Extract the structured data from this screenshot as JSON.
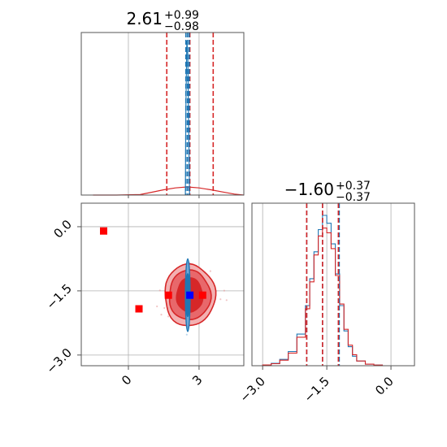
{
  "chart_data": [
    {
      "type": "histogram",
      "panel": "x-marginal",
      "title": {
        "value": "2.61",
        "upper": "+0.99",
        "lower": "−0.98"
      },
      "xlim": [
        -2.0,
        4.9
      ],
      "grid": true,
      "quantile_lines": {
        "red": [
          1.63,
          2.61,
          3.6
        ],
        "blue": [
          2.44,
          2.51,
          2.58
        ]
      },
      "series": [
        {
          "color": "#d62728",
          "bins": [
            [
              -1.5,
              0
            ],
            [
              -0.5,
              0
            ],
            [
              0.5,
              0.2
            ],
            [
              1.0,
              1.2
            ],
            [
              1.5,
              2.2
            ],
            [
              2.0,
              3.0
            ],
            [
              2.5,
              3.4
            ],
            [
              3.0,
              3.0
            ],
            [
              3.5,
              2.2
            ],
            [
              4.0,
              1.3
            ],
            [
              4.5,
              0.4
            ],
            [
              4.9,
              0
            ]
          ]
        },
        {
          "color": "#1f77b4",
          "bins": [
            [
              2.42,
              0
            ],
            [
              2.44,
              40
            ],
            [
              2.48,
              72
            ],
            [
              2.52,
              66
            ],
            [
              2.56,
              30
            ],
            [
              2.6,
              0
            ]
          ]
        }
      ]
    },
    {
      "type": "histogram",
      "panel": "y-marginal",
      "title": {
        "value": "−1.60",
        "upper": "+0.37",
        "lower": "−0.37"
      },
      "xlim": [
        -3.25,
        0.55
      ],
      "xticks": [
        "−3.0",
        "−1.5",
        "0.0"
      ],
      "xtick_values": [
        -3.0,
        -1.5,
        0.0
      ],
      "grid": true,
      "quantile_lines": {
        "red": [
          -1.97,
          -1.6,
          -1.23
        ],
        "blue": [
          -1.97,
          -1.6,
          -1.21
        ]
      },
      "series": [
        {
          "color": "#1f77b4",
          "bins": [
            [
              -3.2,
              0
            ],
            [
              -3.0,
              0.5
            ],
            [
              -2.8,
              1.5
            ],
            [
              -2.6,
              4
            ],
            [
              -2.4,
              9
            ],
            [
              -2.2,
              20
            ],
            [
              -2.0,
              38
            ],
            [
              -1.9,
              55
            ],
            [
              -1.8,
              72
            ],
            [
              -1.7,
              86
            ],
            [
              -1.6,
              95
            ],
            [
              -1.5,
              90
            ],
            [
              -1.4,
              77
            ],
            [
              -1.3,
              58
            ],
            [
              -1.2,
              38
            ],
            [
              -1.1,
              22
            ],
            [
              -1.0,
              12
            ],
            [
              -0.9,
              6
            ],
            [
              -0.8,
              3
            ],
            [
              -0.6,
              1
            ],
            [
              -0.4,
              0.4
            ],
            [
              -0.2,
              0
            ]
          ]
        },
        {
          "color": "#d62728",
          "bins": [
            [
              -3.2,
              0
            ],
            [
              -3.0,
              0.5
            ],
            [
              -2.8,
              1.3
            ],
            [
              -2.6,
              3.5
            ],
            [
              -2.4,
              8
            ],
            [
              -2.2,
              18
            ],
            [
              -2.0,
              36
            ],
            [
              -1.9,
              53
            ],
            [
              -1.8,
              70
            ],
            [
              -1.7,
              82
            ],
            [
              -1.6,
              87
            ],
            [
              -1.5,
              84
            ],
            [
              -1.4,
              74
            ],
            [
              -1.3,
              57
            ],
            [
              -1.2,
              39
            ],
            [
              -1.1,
              23
            ],
            [
              -1.0,
              13
            ],
            [
              -0.9,
              7
            ],
            [
              -0.8,
              3
            ],
            [
              -0.6,
              1
            ],
            [
              -0.4,
              0.4
            ],
            [
              -0.2,
              0
            ]
          ]
        }
      ]
    },
    {
      "type": "contour",
      "panel": "joint",
      "xlim": [
        -2.0,
        4.9
      ],
      "ylim": [
        -3.25,
        0.55
      ],
      "xticks": [
        "0",
        "3"
      ],
      "xtick_values": [
        0,
        3
      ],
      "yticks": [
        "0.0",
        "−1.5",
        "−3.0"
      ],
      "ytick_values": [
        0.0,
        -1.5,
        -3.0
      ],
      "grid": true,
      "red_contours": {
        "color": "#d62728",
        "center": [
          2.6,
          -1.6
        ],
        "radii": [
          [
            1.0,
            0.4
          ],
          [
            1.6,
            0.58
          ],
          [
            1.95,
            0.72
          ]
        ],
        "fills": [
          "#d62728",
          "#e8686b",
          "#f3b0b1"
        ]
      },
      "blue_contours": {
        "color": "#1f77b4",
        "center": [
          2.52,
          -1.6
        ],
        "radii": [
          [
            0.07,
            0.5
          ],
          [
            0.1,
            0.85
          ]
        ]
      },
      "markers": [
        {
          "x": -1.05,
          "y": -0.1,
          "color": "#ff0000"
        },
        {
          "x": 0.45,
          "y": -1.92,
          "color": "#ff0000"
        },
        {
          "x": 1.7,
          "y": -1.6,
          "color": "#ff0000"
        },
        {
          "x": 3.15,
          "y": -1.6,
          "color": "#ff0000"
        },
        {
          "x": 2.61,
          "y": -1.6,
          "color": "#0000ff"
        }
      ]
    }
  ]
}
